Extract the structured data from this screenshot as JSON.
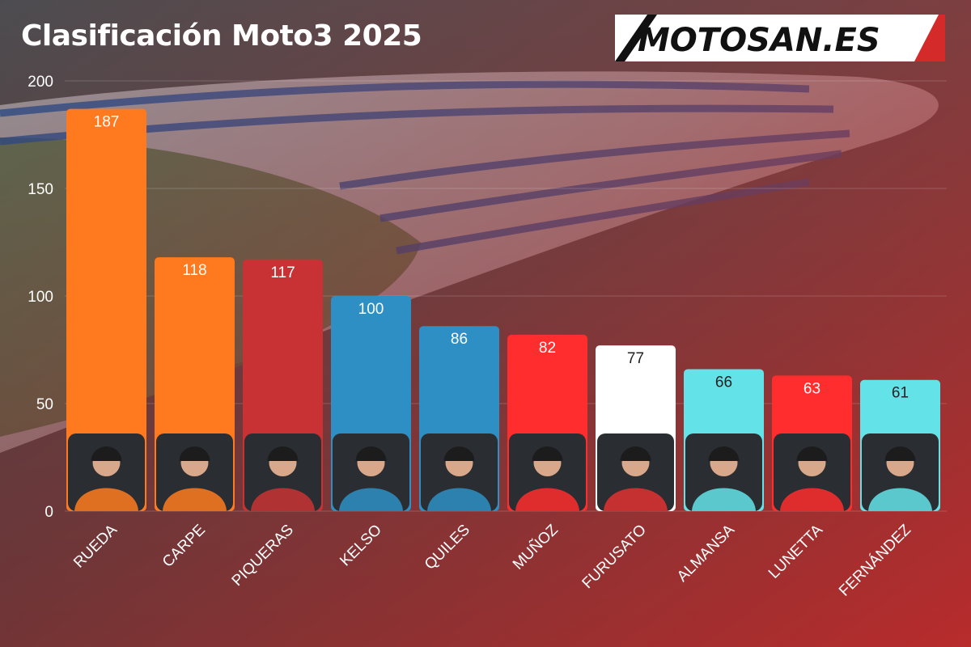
{
  "header": {
    "title": "Clasificación Moto3 2025",
    "logo_text": "MOTOSAN.ES"
  },
  "chart_data": {
    "type": "bar",
    "title": "Clasificación Moto3 2025",
    "xlabel": "",
    "ylabel": "",
    "ylim": [
      0,
      200
    ],
    "yticks": [
      0,
      50,
      100,
      150,
      200
    ],
    "grid": true,
    "categories": [
      "RUEDA",
      "CARPE",
      "PIQUERAS",
      "KELSO",
      "QUILES",
      "MUÑOZ",
      "FURUSATO",
      "ALMANSA",
      "LUNETTA",
      "FERNÁNDEZ"
    ],
    "values": [
      187,
      118,
      117,
      100,
      86,
      82,
      77,
      66,
      63,
      61
    ],
    "bar_colors": [
      "#ff7a1e",
      "#ff7a1e",
      "#c93234",
      "#2d8fc4",
      "#2d8fc4",
      "#ff2d2d",
      "#ffffff",
      "#63e3e8",
      "#ff2d2d",
      "#63e3e8"
    ],
    "value_label_colors": [
      "#ffffff",
      "#ffffff",
      "#ffffff",
      "#ffffff",
      "#ffffff",
      "#ffffff",
      "#222222",
      "#222222",
      "#ffffff",
      "#222222"
    ]
  }
}
